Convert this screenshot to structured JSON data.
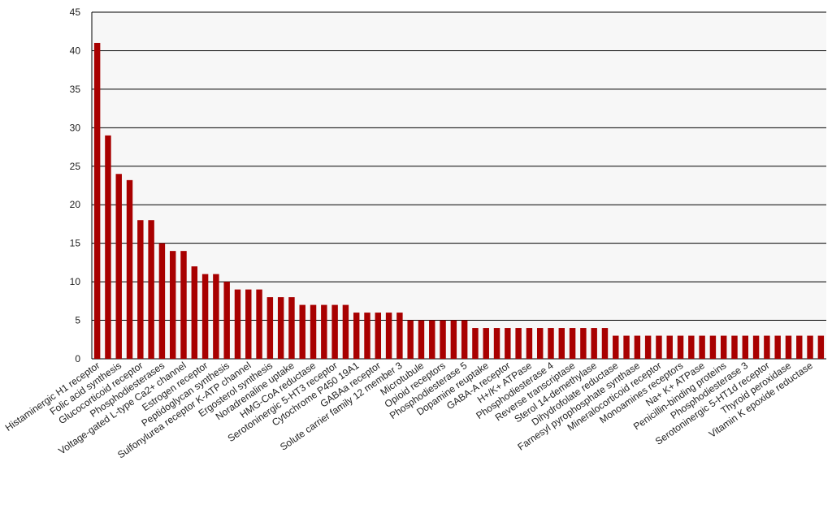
{
  "chart_data": {
    "type": "bar",
    "categories": [
      "Histaminergic H1 receptor",
      null,
      "Folic acid synthesis",
      null,
      "Glucocorticoid receptor",
      null,
      "Phosphodiesterases",
      null,
      "Voltage-gated L-type Ca2+ channel",
      null,
      "Estrogen receptor",
      null,
      "Peptidoglycan synthesis",
      null,
      "Sulfonylurea receptor K-ATP channel",
      null,
      "Ergosterol synthesis",
      null,
      "Noradrenaline uptake",
      null,
      "HMG-CoA reductase",
      null,
      "Serotoninergic 5-HT3 receptor",
      null,
      "Cytochrome P450 19A1",
      null,
      "GABAa receptor",
      null,
      "Solute carrier family 12 member 3",
      null,
      "Microtubule",
      null,
      "Opioid receptors",
      null,
      "Phosphodiesterase 5",
      null,
      "Dopamine reuptake",
      null,
      "GABA-A receptor",
      null,
      "H+/K+ ATPase",
      null,
      "Phosphodiesterase 4",
      null,
      "Reverse transcriptase",
      null,
      "Sterol 14-demethylase",
      null,
      "Dihydrofolate reductase",
      null,
      "Farnesyl pyrophosphate synthase",
      null,
      "Mineralocorticoid receptor",
      null,
      "Monoamines receptors",
      null,
      "Na+ K+ ATPase",
      null,
      "Penicillin-binding proteins",
      null,
      "Phosphodiesterase 3",
      null,
      "Serotoninergic 5-HT1d receptor",
      null,
      "Thyroid peroxidase",
      null,
      "Vitamin K epoxide reductase",
      null
    ],
    "values": [
      41,
      29,
      24,
      23.2,
      18,
      18,
      15,
      14,
      14,
      12,
      11,
      11,
      10,
      9,
      9,
      9,
      8,
      8,
      8,
      7,
      7,
      7,
      7,
      7,
      6,
      6,
      6,
      6,
      6,
      5,
      5,
      5,
      5,
      5,
      5,
      4,
      4,
      4,
      4,
      4,
      4,
      4,
      4,
      4,
      4,
      4,
      4,
      4,
      3,
      3,
      3,
      3,
      3,
      3,
      3,
      3,
      3,
      3,
      3,
      3,
      3,
      3,
      3,
      3,
      3,
      3,
      3,
      3
    ],
    "color": "#a80000",
    "ylim": [
      0,
      45
    ],
    "yticks": [
      0,
      5,
      10,
      15,
      20,
      25,
      30,
      35,
      40,
      45
    ],
    "grid": true
  }
}
